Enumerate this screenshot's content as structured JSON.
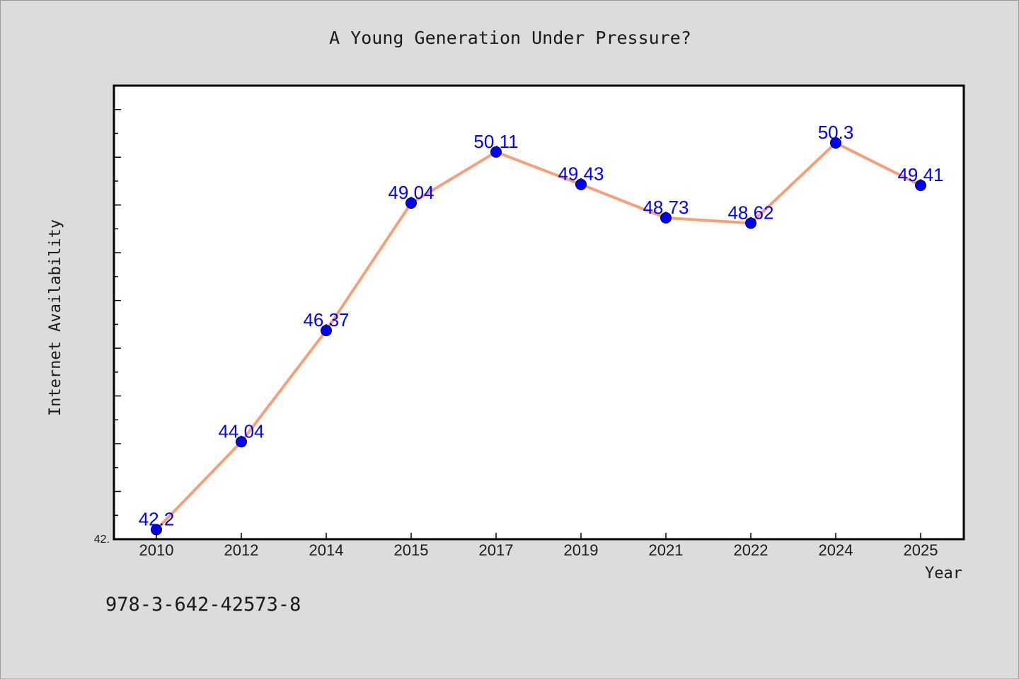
{
  "chart_data": {
    "type": "line",
    "title": "A Young Generation Under Pressure?",
    "xlabel": "Year",
    "ylabel": "Internet Availability",
    "categories": [
      "2010",
      "2012",
      "2014",
      "2015",
      "2017",
      "2019",
      "2021",
      "2022",
      "2024",
      "2025"
    ],
    "values": [
      42.2,
      44.04,
      46.37,
      49.04,
      50.11,
      49.43,
      48.73,
      48.62,
      50.3,
      49.41
    ],
    "data_labels": [
      "42.2",
      "44.04",
      "46.37",
      "49.04",
      "50.11",
      "49.43",
      "48.73",
      "48.62",
      "50.3",
      "49.41"
    ],
    "ylim": [
      42.0,
      51.5
    ],
    "ytick_label": "42.",
    "line_color": "#f4a07a",
    "marker_color": "#0000ff",
    "label_color": "#0000ff",
    "grid": false
  },
  "footer_text": "978-3-642-42573-8"
}
